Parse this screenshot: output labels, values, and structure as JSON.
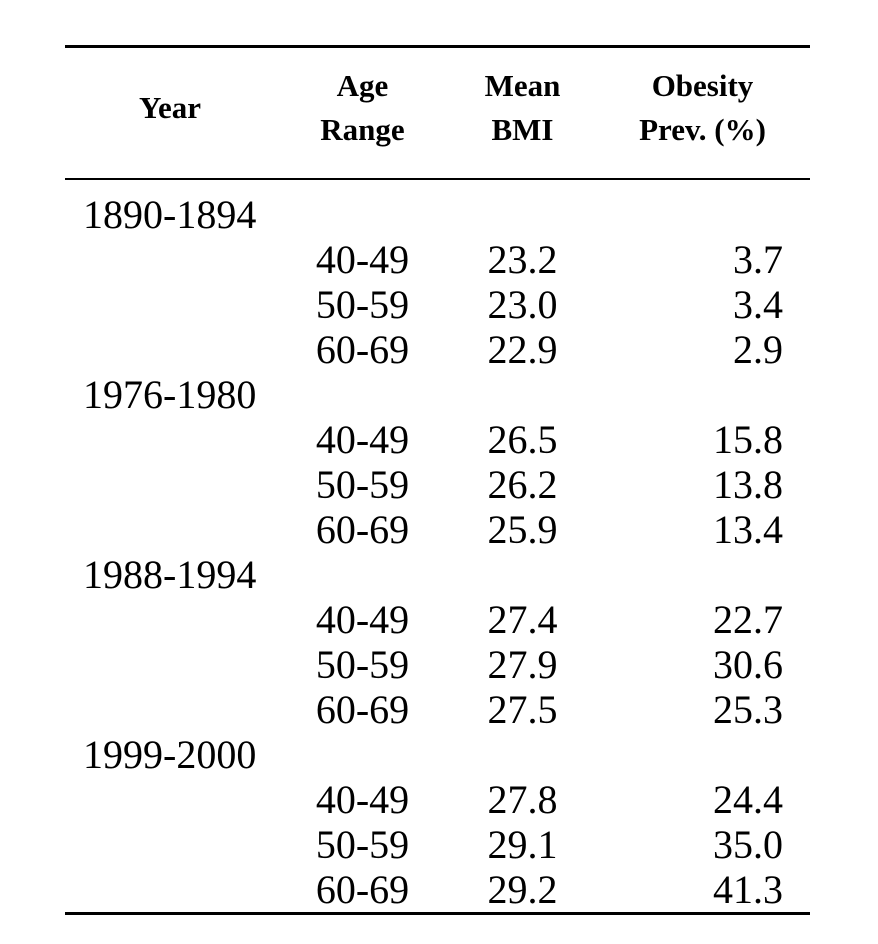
{
  "page": {
    "background": "#ffffff",
    "text_color": "#000000",
    "rule_color": "#000000"
  },
  "table": {
    "columns": [
      {
        "id": "year",
        "lines": [
          "Year"
        ]
      },
      {
        "id": "age",
        "lines": [
          "Age",
          "Range"
        ]
      },
      {
        "id": "bmi",
        "lines": [
          "Mean",
          "BMI"
        ]
      },
      {
        "id": "prev",
        "lines": [
          "Obesity",
          "Prev. (%)"
        ]
      }
    ],
    "groups": [
      {
        "year": "1890-1894",
        "rows": [
          {
            "age_range": "40-49",
            "mean_bmi": "23.2",
            "obesity_prev": "3.7"
          },
          {
            "age_range": "50-59",
            "mean_bmi": "23.0",
            "obesity_prev": "3.4"
          },
          {
            "age_range": "60-69",
            "mean_bmi": "22.9",
            "obesity_prev": "2.9"
          }
        ]
      },
      {
        "year": "1976-1980",
        "rows": [
          {
            "age_range": "40-49",
            "mean_bmi": "26.5",
            "obesity_prev": "15.8"
          },
          {
            "age_range": "50-59",
            "mean_bmi": "26.2",
            "obesity_prev": "13.8"
          },
          {
            "age_range": "60-69",
            "mean_bmi": "25.9",
            "obesity_prev": "13.4"
          }
        ]
      },
      {
        "year": "1988-1994",
        "rows": [
          {
            "age_range": "40-49",
            "mean_bmi": "27.4",
            "obesity_prev": "22.7"
          },
          {
            "age_range": "50-59",
            "mean_bmi": "27.9",
            "obesity_prev": "30.6"
          },
          {
            "age_range": "60-69",
            "mean_bmi": "27.5",
            "obesity_prev": "25.3"
          }
        ]
      },
      {
        "year": "1999-2000",
        "rows": [
          {
            "age_range": "40-49",
            "mean_bmi": "27.8",
            "obesity_prev": "24.4"
          },
          {
            "age_range": "50-59",
            "mean_bmi": "29.1",
            "obesity_prev": "35.0"
          },
          {
            "age_range": "60-69",
            "mean_bmi": "29.2",
            "obesity_prev": "41.3"
          }
        ]
      }
    ]
  }
}
